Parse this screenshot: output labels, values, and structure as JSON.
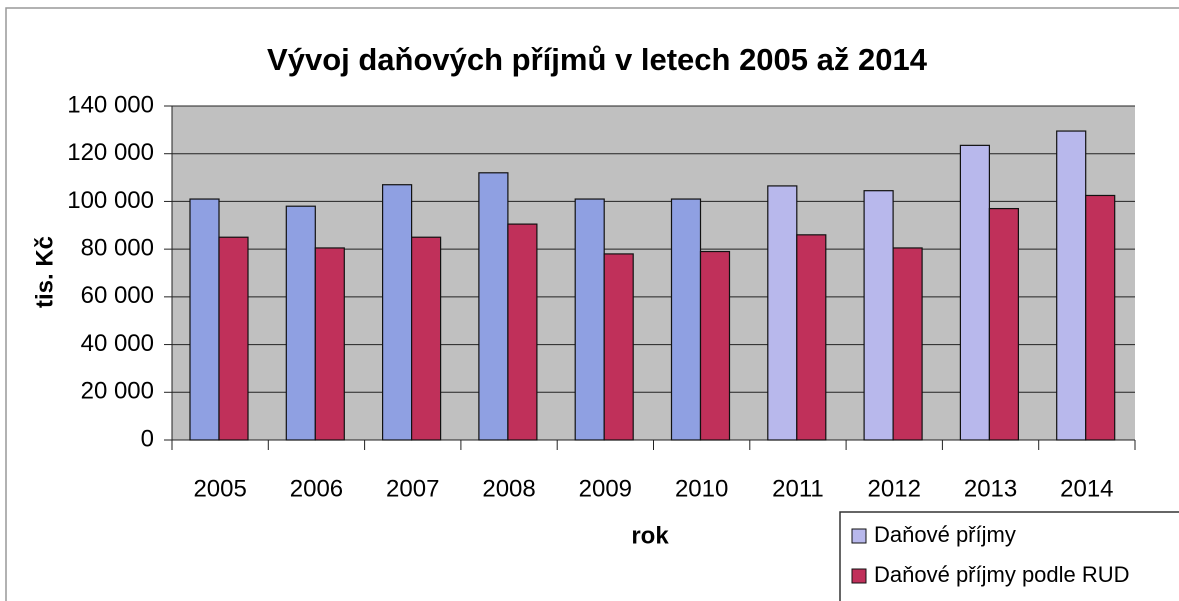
{
  "chart_data": {
    "type": "bar",
    "title": "Vývoj daňových příjmů v letech 2005 až 2014",
    "x_label": "rok",
    "y_label": "tis. Kč",
    "categories": [
      "2005",
      "2006",
      "2007",
      "2008",
      "2009",
      "2010",
      "2011",
      "2012",
      "2013",
      "2014"
    ],
    "series": [
      {
        "name": "Daňové příjmy",
        "color": "#b8b8ec",
        "colors": [
          "#8fa0e2",
          "#8fa0e2",
          "#8fa0e2",
          "#8fa0e2",
          "#8fa0e2",
          "#8fa0e2",
          "#b8b8ec",
          "#b8b8ec",
          "#b8b8ec",
          "#b8b8ec"
        ],
        "values": [
          101000,
          98000,
          107000,
          112000,
          101000,
          101000,
          106500,
          104500,
          123500,
          129500
        ]
      },
      {
        "name": "Daňové příjmy podle RUD",
        "color": "#c0305a",
        "values": [
          85000,
          80500,
          85000,
          90500,
          78000,
          79000,
          86000,
          80500,
          97000,
          102500
        ]
      }
    ],
    "ylim": [
      0,
      140000
    ],
    "yticks": [
      0,
      {
        "value": 20000,
        "label": "20 000"
      },
      {
        "value": 40000,
        "label": "40 000"
      },
      {
        "value": 60000,
        "label": "60 000"
      },
      {
        "value": 80000,
        "label": "80 000"
      },
      {
        "value": 100000,
        "label": "100 000"
      },
      {
        "value": 120000,
        "label": "120 000"
      },
      {
        "value": 140000,
        "label": "140 000"
      }
    ],
    "grid": true,
    "legend": "bottom-right"
  }
}
